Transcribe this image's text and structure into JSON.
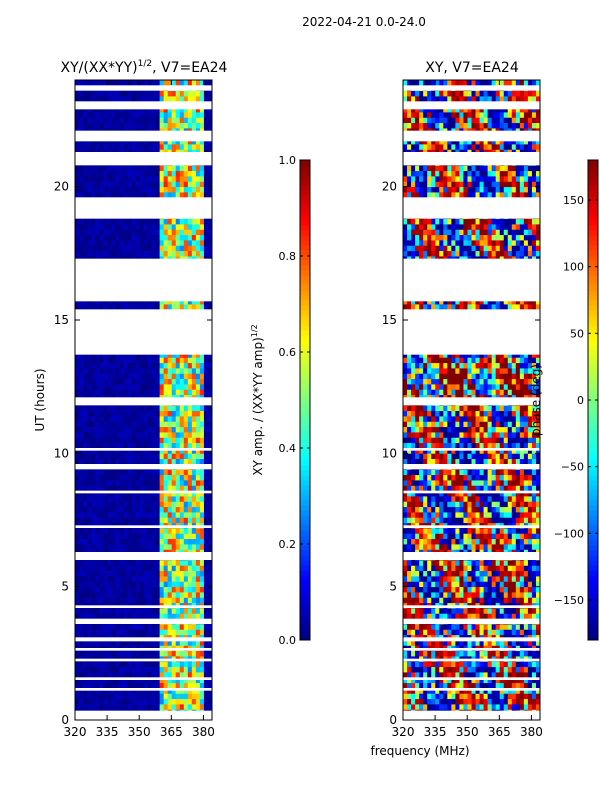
{
  "figure": {
    "suptitle": "2022-04-21 0.0-24.0",
    "shared_xlabel": "frequency (MHz)"
  },
  "chart_data": [
    {
      "type": "heatmap",
      "title": "XY/(XX*YY)",
      "title_exponent": "1/2",
      "title_suffix": ", V7=EA24",
      "xlabel": "",
      "ylabel": "UT (hours)",
      "xlim": [
        320,
        384
      ],
      "ylim": [
        0,
        24
      ],
      "xticks": [
        320,
        335,
        350,
        365,
        380
      ],
      "yticks": [
        0,
        5,
        10,
        15,
        20
      ],
      "colorbar": {
        "label": "XY amp. / (XX*YY amp)",
        "label_exponent": "1/2",
        "range": [
          0.0,
          1.0
        ],
        "ticks": [
          "0.0",
          "0.2",
          "0.4",
          "0.6",
          "0.8",
          "1.0"
        ],
        "tick_values": [
          0.0,
          0.2,
          0.4,
          0.6,
          0.8,
          1.0
        ]
      },
      "colormap": "jet",
      "missing_data_bands_ut": [
        [
          0.0,
          0.35
        ],
        [
          1.1,
          1.2
        ],
        [
          1.5,
          1.6
        ],
        [
          2.2,
          2.3
        ],
        [
          2.6,
          2.7
        ],
        [
          2.95,
          3.1
        ],
        [
          3.6,
          3.8
        ],
        [
          4.2,
          4.3
        ],
        [
          6.0,
          6.3
        ],
        [
          7.2,
          7.3
        ],
        [
          8.5,
          8.6
        ],
        [
          9.4,
          9.6
        ],
        [
          10.1,
          10.2
        ],
        [
          11.8,
          12.1
        ],
        [
          13.7,
          15.4
        ],
        [
          15.7,
          17.3
        ],
        [
          18.8,
          19.6
        ],
        [
          20.8,
          21.3
        ],
        [
          21.7,
          22.1
        ],
        [
          22.9,
          23.2
        ],
        [
          23.6,
          23.8
        ]
      ],
      "bright_channel_band_mhz": [
        360,
        380
      ],
      "notes": "values near 0 (dark blue) for 320-358 MHz; higher amplitude (0.3-0.9) in 360-380 MHz"
    },
    {
      "type": "heatmap",
      "title": "XY, V7=EA24",
      "xlabel": "",
      "ylabel": "",
      "xlim": [
        320,
        384
      ],
      "ylim": [
        0,
        24
      ],
      "xticks": [
        320,
        335,
        350,
        365,
        380
      ],
      "yticks": [
        0,
        5,
        10,
        15,
        20
      ],
      "colorbar": {
        "label": "phase (deg)",
        "range": [
          -180,
          180
        ],
        "ticks": [
          "−150",
          "−100",
          "−50",
          "0",
          "50",
          "100",
          "150"
        ],
        "tick_values": [
          -150,
          -100,
          -50,
          0,
          50,
          100,
          150
        ]
      },
      "colormap": "jet",
      "missing_data_bands_ut": [
        [
          0.0,
          0.35
        ],
        [
          1.1,
          1.2
        ],
        [
          1.5,
          1.6
        ],
        [
          2.2,
          2.3
        ],
        [
          2.6,
          2.7
        ],
        [
          2.95,
          3.1
        ],
        [
          3.6,
          3.8
        ],
        [
          4.2,
          4.3
        ],
        [
          6.0,
          6.3
        ],
        [
          7.2,
          7.3
        ],
        [
          8.5,
          8.6
        ],
        [
          9.4,
          9.6
        ],
        [
          10.1,
          10.2
        ],
        [
          11.8,
          12.1
        ],
        [
          13.7,
          15.4
        ],
        [
          15.7,
          17.3
        ],
        [
          18.8,
          19.6
        ],
        [
          20.8,
          21.3
        ],
        [
          21.7,
          22.1
        ],
        [
          22.9,
          23.2
        ],
        [
          23.6,
          23.8
        ]
      ],
      "notes": "phases span full -180..180 range; warm (red/orange) region around 12-14 UT"
    }
  ]
}
